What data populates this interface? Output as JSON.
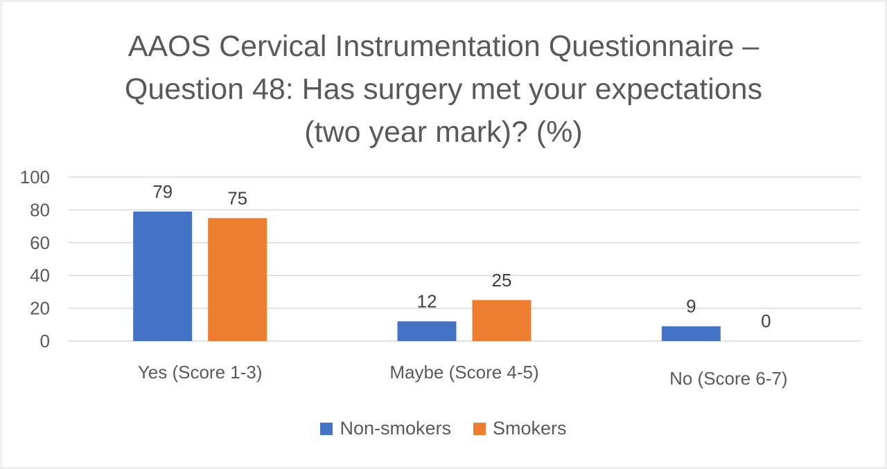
{
  "chart_data": {
    "type": "bar",
    "title": "AAOS Cervical Instrumentation Questionnaire – Question 48: Has surgery met your expectations (two year mark)? (%)",
    "title_lines": [
      "AAOS Cervical Instrumentation Questionnaire –",
      "Question 48: Has surgery met your expectations",
      "(two year mark)? (%)"
    ],
    "categories": [
      "Yes (Score 1-3)",
      "Maybe (Score 4-5)",
      "No (Score 6-7)"
    ],
    "series": [
      {
        "name": "Non-smokers",
        "values": [
          79,
          12,
          9
        ],
        "color": "#4472C4"
      },
      {
        "name": "Smokers",
        "values": [
          75,
          25,
          0
        ],
        "color": "#ED7D31"
      }
    ],
    "y_ticks": [
      0,
      20,
      40,
      60,
      80,
      100
    ],
    "ylim": [
      0,
      100
    ],
    "xlabel": "",
    "ylabel": "",
    "grid": true,
    "data_labels": true,
    "legend_position": "bottom"
  }
}
